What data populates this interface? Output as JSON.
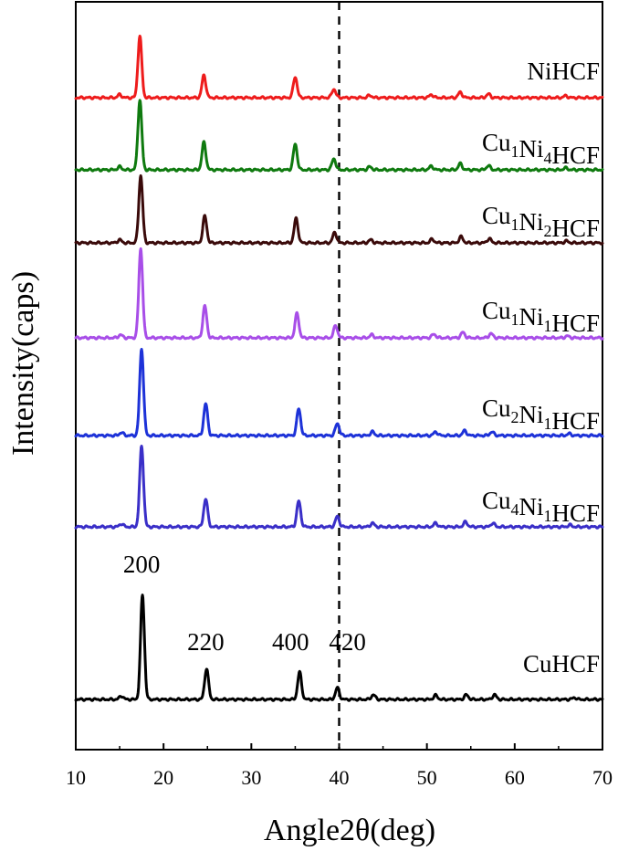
{
  "chart_data": {
    "type": "line",
    "title": "",
    "xlabel": "Angle2θ(deg)",
    "ylabel": "Intensity(caps)",
    "xlim": [
      10,
      70
    ],
    "xticks": [
      10,
      20,
      30,
      40,
      50,
      60,
      70
    ],
    "yticks_shown": false,
    "grid": false,
    "legend": "labels beside each curve (right side)",
    "reference_line": {
      "x": 40,
      "style": "dashed",
      "color": "#000000"
    },
    "peak_labels": [
      {
        "text": "200",
        "x": 17.5
      },
      {
        "text": "220",
        "x": 24.8
      },
      {
        "text": "400",
        "x": 35.3
      },
      {
        "text": "420",
        "x": 39.8
      }
    ],
    "series": [
      {
        "name": "NiHCF",
        "label_parts": [
          [
            "NiHCF",
            false
          ]
        ],
        "color": "#ee1c1c",
        "offset": 6,
        "peaks": [
          [
            15.0,
            0.05
          ],
          [
            17.3,
            1.0
          ],
          [
            24.6,
            0.37
          ],
          [
            35.0,
            0.34
          ],
          [
            39.4,
            0.14
          ],
          [
            43.5,
            0.04
          ],
          [
            50.5,
            0.05
          ],
          [
            53.8,
            0.09
          ],
          [
            57.0,
            0.06
          ],
          [
            65.8,
            0.03
          ]
        ]
      },
      {
        "name": "Cu1Ni4HCF",
        "label_parts": [
          [
            "Cu",
            false
          ],
          [
            "1",
            true
          ],
          [
            "Ni",
            false
          ],
          [
            "4",
            true
          ],
          [
            "HCF",
            false
          ]
        ],
        "color": "#0f7a0f",
        "offset": 5,
        "peaks": [
          [
            15.0,
            0.05
          ],
          [
            17.3,
            1.14
          ],
          [
            24.6,
            0.45
          ],
          [
            35.0,
            0.42
          ],
          [
            39.4,
            0.18
          ],
          [
            43.5,
            0.05
          ],
          [
            50.5,
            0.06
          ],
          [
            53.8,
            0.1
          ],
          [
            57.0,
            0.07
          ],
          [
            65.8,
            0.03
          ]
        ]
      },
      {
        "name": "Cu1Ni2HCF",
        "label_parts": [
          [
            "Cu",
            false
          ],
          [
            "1",
            true
          ],
          [
            "Ni",
            false
          ],
          [
            "2",
            true
          ],
          [
            "HCF",
            false
          ]
        ],
        "color": "#3a0a0a",
        "offset": 4,
        "peaks": [
          [
            15.0,
            0.05
          ],
          [
            17.4,
            1.1
          ],
          [
            24.7,
            0.44
          ],
          [
            35.1,
            0.4
          ],
          [
            39.5,
            0.17
          ],
          [
            43.6,
            0.05
          ],
          [
            50.6,
            0.06
          ],
          [
            53.9,
            0.1
          ],
          [
            57.1,
            0.07
          ],
          [
            65.9,
            0.03
          ]
        ]
      },
      {
        "name": "Cu1Ni1HCF",
        "label_parts": [
          [
            "Cu",
            false
          ],
          [
            "1",
            true
          ],
          [
            "Ni",
            false
          ],
          [
            "1",
            true
          ],
          [
            "HCF",
            false
          ]
        ],
        "color": "#a84ee8",
        "offset": 3,
        "peaks": [
          [
            15.1,
            0.05
          ],
          [
            17.4,
            1.46
          ],
          [
            24.7,
            0.52
          ],
          [
            35.2,
            0.4
          ],
          [
            39.6,
            0.2
          ],
          [
            43.7,
            0.05
          ],
          [
            50.8,
            0.06
          ],
          [
            54.1,
            0.09
          ],
          [
            57.3,
            0.07
          ],
          [
            66.0,
            0.03
          ]
        ]
      },
      {
        "name": "Cu2Ni1HCF",
        "label_parts": [
          [
            "Cu",
            false
          ],
          [
            "2",
            true
          ],
          [
            "Ni",
            false
          ],
          [
            "1",
            true
          ],
          [
            "HCF",
            false
          ]
        ],
        "color": "#1d32d8",
        "offset": 2,
        "peaks": [
          [
            15.2,
            0.05
          ],
          [
            17.5,
            1.42
          ],
          [
            24.8,
            0.52
          ],
          [
            35.4,
            0.44
          ],
          [
            39.8,
            0.2
          ],
          [
            43.8,
            0.06
          ],
          [
            51.0,
            0.06
          ],
          [
            54.3,
            0.08
          ],
          [
            57.4,
            0.06
          ],
          [
            66.2,
            0.03
          ]
        ]
      },
      {
        "name": "Cu4Ni1HCF",
        "label_parts": [
          [
            "Cu",
            false
          ],
          [
            "4",
            true
          ],
          [
            "Ni",
            false
          ],
          [
            "1",
            true
          ],
          [
            "HCF",
            false
          ]
        ],
        "color": "#3a2fc8",
        "offset": 1,
        "peaks": [
          [
            15.2,
            0.05
          ],
          [
            17.5,
            1.32
          ],
          [
            24.8,
            0.46
          ],
          [
            35.4,
            0.42
          ],
          [
            39.8,
            0.17
          ],
          [
            43.8,
            0.06
          ],
          [
            51.0,
            0.06
          ],
          [
            54.4,
            0.08
          ],
          [
            57.5,
            0.06
          ],
          [
            66.3,
            0.03
          ]
        ]
      },
      {
        "name": "CuHCF",
        "label_parts": [
          [
            "CuHCF",
            false
          ]
        ],
        "color": "#000000",
        "offset": 0,
        "peaks": [
          [
            15.2,
            0.06
          ],
          [
            17.6,
            1.8
          ],
          [
            24.9,
            0.53
          ],
          [
            35.5,
            0.47
          ],
          [
            39.8,
            0.2
          ],
          [
            43.9,
            0.08
          ],
          [
            51.0,
            0.07
          ],
          [
            54.5,
            0.08
          ],
          [
            57.7,
            0.08
          ],
          [
            66.8,
            0.03
          ]
        ]
      }
    ]
  }
}
